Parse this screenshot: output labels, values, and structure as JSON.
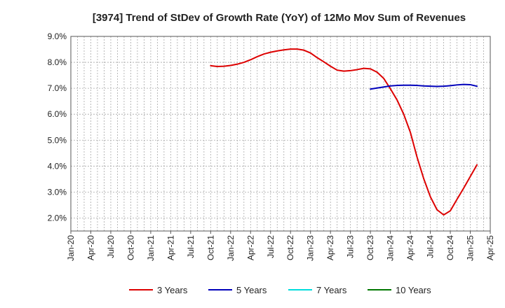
{
  "chart_data": {
    "type": "line",
    "title": "[3974]  Trend of StDev of Growth Rate (YoY) of 12Mo Mov Sum of Revenues",
    "xlabel": "",
    "ylabel": "",
    "ylim": [
      1.5,
      9.0
    ],
    "yticks": [
      {
        "value": 2.0,
        "label": "2.0%"
      },
      {
        "value": 3.0,
        "label": "3.0%"
      },
      {
        "value": 4.0,
        "label": "4.0%"
      },
      {
        "value": 5.0,
        "label": "5.0%"
      },
      {
        "value": 6.0,
        "label": "6.0%"
      },
      {
        "value": 7.0,
        "label": "7.0%"
      },
      {
        "value": 8.0,
        "label": "8.0%"
      },
      {
        "value": 9.0,
        "label": "9.0%"
      }
    ],
    "x_domain_months": [
      0,
      63
    ],
    "xticks": [
      {
        "m": 0,
        "label": "Jan-20"
      },
      {
        "m": 3,
        "label": "Apr-20"
      },
      {
        "m": 6,
        "label": "Jul-20"
      },
      {
        "m": 9,
        "label": "Oct-20"
      },
      {
        "m": 12,
        "label": "Jan-21"
      },
      {
        "m": 15,
        "label": "Apr-21"
      },
      {
        "m": 18,
        "label": "Jul-21"
      },
      {
        "m": 21,
        "label": "Oct-21"
      },
      {
        "m": 24,
        "label": "Jan-22"
      },
      {
        "m": 27,
        "label": "Apr-22"
      },
      {
        "m": 30,
        "label": "Jul-22"
      },
      {
        "m": 33,
        "label": "Oct-22"
      },
      {
        "m": 36,
        "label": "Jan-23"
      },
      {
        "m": 39,
        "label": "Apr-23"
      },
      {
        "m": 42,
        "label": "Jul-23"
      },
      {
        "m": 45,
        "label": "Oct-23"
      },
      {
        "m": 48,
        "label": "Jan-24"
      },
      {
        "m": 51,
        "label": "Apr-24"
      },
      {
        "m": 54,
        "label": "Jul-24"
      },
      {
        "m": 57,
        "label": "Oct-24"
      },
      {
        "m": 60,
        "label": "Jan-25"
      },
      {
        "m": 63,
        "label": "Apr-25"
      }
    ],
    "grid": true,
    "legend_position": "bottom",
    "series": [
      {
        "name": "3 Years",
        "color": "#dd0000",
        "points": [
          [
            21,
            7.87
          ],
          [
            22,
            7.84
          ],
          [
            23,
            7.85
          ],
          [
            24,
            7.88
          ],
          [
            25,
            7.93
          ],
          [
            26,
            8.0
          ],
          [
            27,
            8.1
          ],
          [
            28,
            8.22
          ],
          [
            29,
            8.32
          ],
          [
            30,
            8.39
          ],
          [
            31,
            8.44
          ],
          [
            32,
            8.48
          ],
          [
            33,
            8.51
          ],
          [
            34,
            8.51
          ],
          [
            35,
            8.47
          ],
          [
            36,
            8.36
          ],
          [
            37,
            8.18
          ],
          [
            38,
            8.02
          ],
          [
            39,
            7.85
          ],
          [
            40,
            7.7
          ],
          [
            41,
            7.66
          ],
          [
            42,
            7.68
          ],
          [
            43,
            7.72
          ],
          [
            44,
            7.77
          ],
          [
            45,
            7.75
          ],
          [
            46,
            7.62
          ],
          [
            47,
            7.38
          ],
          [
            48,
            6.98
          ],
          [
            49,
            6.55
          ],
          [
            50,
            6.0
          ],
          [
            51,
            5.3
          ],
          [
            52,
            4.35
          ],
          [
            53,
            3.52
          ],
          [
            54,
            2.82
          ],
          [
            55,
            2.32
          ],
          [
            56,
            2.12
          ],
          [
            57,
            2.28
          ],
          [
            58,
            2.72
          ],
          [
            59,
            3.15
          ],
          [
            60,
            3.6
          ],
          [
            61,
            4.05
          ]
        ]
      },
      {
        "name": "5 Years",
        "color": "#0000bb",
        "points": [
          [
            45,
            6.97
          ],
          [
            46,
            7.01
          ],
          [
            47,
            7.05
          ],
          [
            48,
            7.09
          ],
          [
            49,
            7.11
          ],
          [
            50,
            7.12
          ],
          [
            51,
            7.12
          ],
          [
            52,
            7.11
          ],
          [
            53,
            7.09
          ],
          [
            54,
            7.08
          ],
          [
            55,
            7.07
          ],
          [
            56,
            7.08
          ],
          [
            57,
            7.1
          ],
          [
            58,
            7.13
          ],
          [
            59,
            7.15
          ],
          [
            60,
            7.14
          ],
          [
            61,
            7.08
          ]
        ]
      },
      {
        "name": "7 Years",
        "color": "#00dddd",
        "points": []
      },
      {
        "name": "10 Years",
        "color": "#007700",
        "points": []
      }
    ]
  }
}
